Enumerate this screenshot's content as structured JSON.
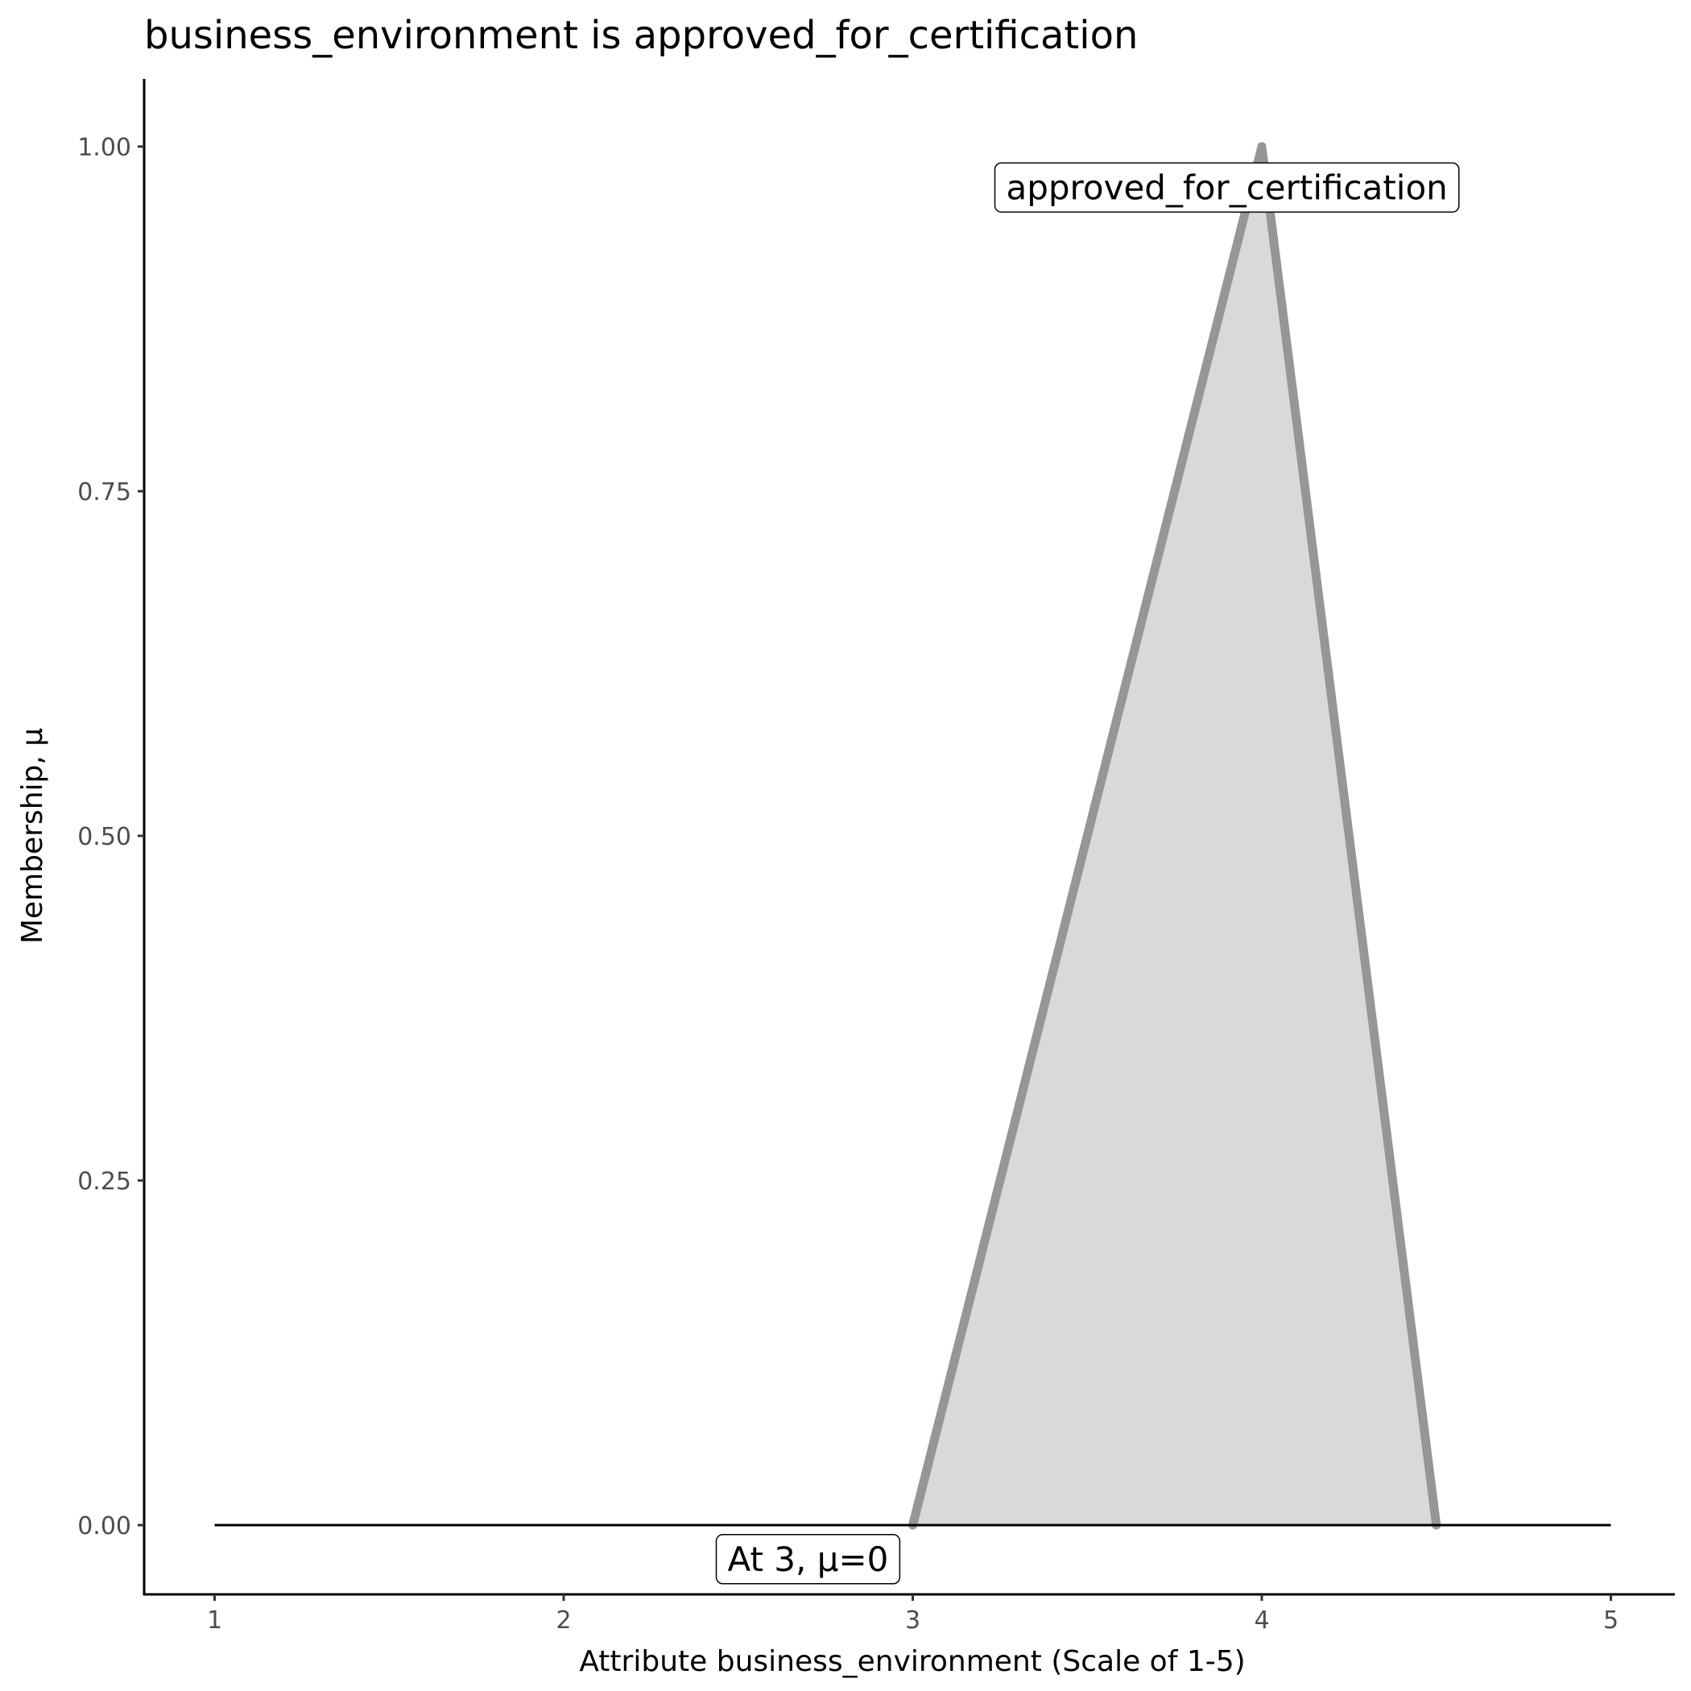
{
  "chart_data": {
    "type": "area",
    "title": "business_environment is approved_for_certification",
    "xlabel": "Attribute business_environment (Scale of 1-5)",
    "ylabel": "Membership, μ",
    "xlim": [
      0.8,
      5.2
    ],
    "ylim": [
      -0.05,
      1.05
    ],
    "x_ticks": [
      "1",
      "2",
      "3",
      "4",
      "5"
    ],
    "y_ticks": [
      "0.00",
      "0.25",
      "0.50",
      "0.75",
      "1.00"
    ],
    "grid": false,
    "series": [
      {
        "name": "approved_for_certification",
        "x": [
          3,
          4,
          4.5
        ],
        "y": [
          0,
          1,
          0
        ],
        "line_color": "#969696",
        "fill_color": "#d9d9d9"
      }
    ],
    "baseline": {
      "x": [
        1,
        5
      ],
      "y": [
        0,
        0
      ],
      "color": "#000000"
    },
    "annotations": [
      {
        "text": "approved_for_certification",
        "x": 3.9,
        "y": 0.97
      },
      {
        "text": "At 3, μ=0",
        "x": 2.7,
        "y": -0.025
      }
    ]
  }
}
